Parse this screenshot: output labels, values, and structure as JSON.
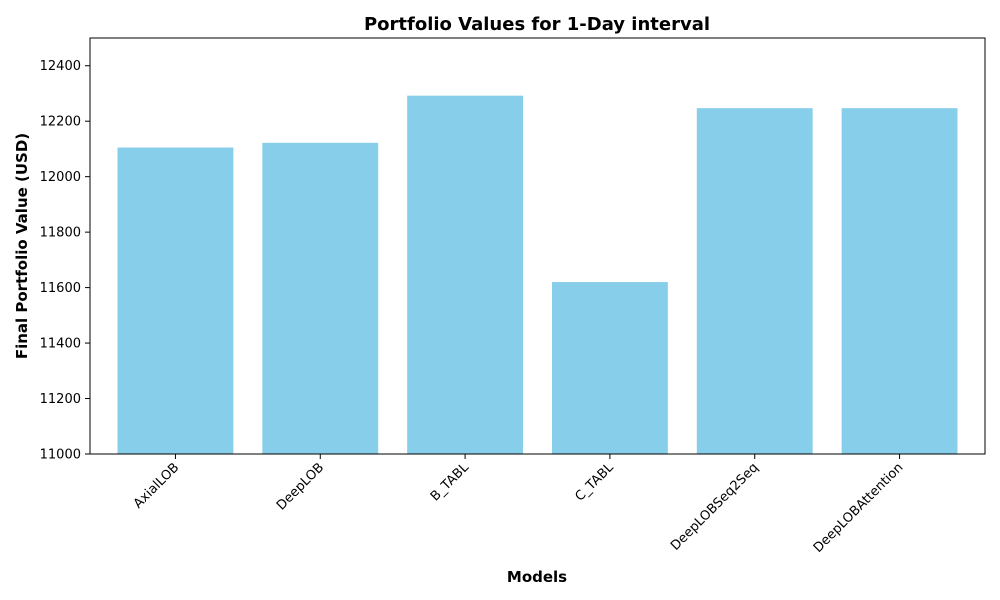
{
  "chart_data": {
    "type": "bar",
    "title": "Portfolio Values for 1-Day interval",
    "xlabel": "Models",
    "ylabel": "Final Portfolio Value (USD)",
    "categories": [
      "AxialLOB",
      "DeepLOB",
      "B_TABL",
      "C_TABL",
      "DeepLOBSeq2Seq",
      "DeepLOBAttention"
    ],
    "values": [
      12105,
      12122,
      12292,
      11620,
      12247,
      12247
    ],
    "ylim": [
      11000,
      12500
    ],
    "yticks": [
      11000,
      11200,
      11400,
      11600,
      11800,
      12000,
      12200,
      12400
    ],
    "ytick_labels": [
      "11000",
      "11200",
      "11400",
      "11600",
      "11800",
      "12000",
      "12200",
      "12400"
    ],
    "bar_color": "#87ceeb",
    "grid": false,
    "legend": "none"
  }
}
